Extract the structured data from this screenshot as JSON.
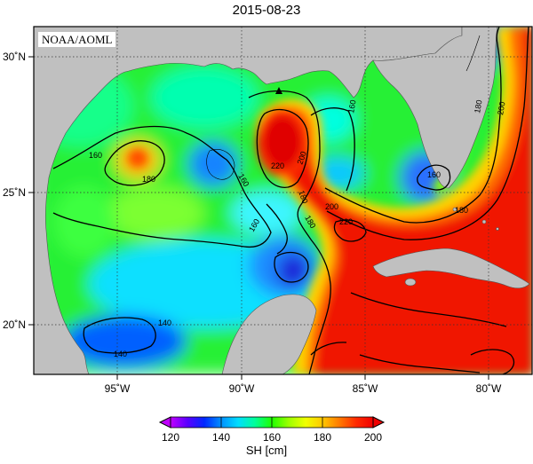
{
  "title": "2015-08-23",
  "credit": "NOAA/AOML",
  "colorbar": {
    "label": "SH [cm]",
    "min": 120,
    "max": 200,
    "ticks": [
      "120",
      "140",
      "160",
      "180",
      "200"
    ],
    "colors": [
      "#c000ff",
      "#5a00ff",
      "#0028ff",
      "#0090ff",
      "#00ddff",
      "#00ff9a",
      "#1eff00",
      "#9cff00",
      "#f0ff00",
      "#ffc800",
      "#ff7a00",
      "#ff2a00",
      "#f00000"
    ]
  },
  "axes": {
    "lon_ticks": [
      "95˚W",
      "90˚W",
      "85˚W",
      "80˚W"
    ],
    "lat_ticks": [
      "30˚N",
      "25˚N",
      "20˚N"
    ]
  },
  "contour_labels": [
    "160",
    "180",
    "160",
    "160",
    "180",
    "220",
    "200",
    "180",
    "180",
    "160",
    "200",
    "220",
    "180",
    "200",
    "160",
    "140",
    "140"
  ],
  "land_color": "#c0c0c0",
  "marker": "triangle-marker"
}
